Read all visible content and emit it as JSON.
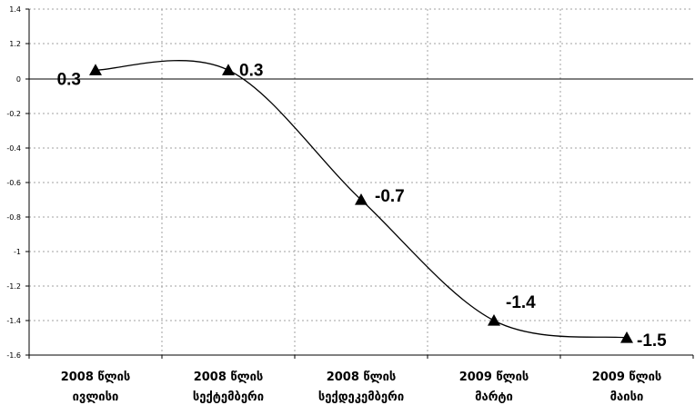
{
  "chart_data": {
    "type": "line",
    "title": "",
    "xlabel": "",
    "ylabel": "",
    "ylim": [
      -1.6,
      1.4
    ],
    "yticks": [
      "1.4",
      "1.2",
      "0",
      "-0.2",
      "-0.4",
      "-0.6",
      "-0.8",
      "-1",
      "-1.2",
      "-1.4",
      "-1.6"
    ],
    "categories": [
      [
        "2008 წლის",
        "ივლისი"
      ],
      [
        "2008 წლის",
        "სექტემბერი"
      ],
      [
        "2008 წლის",
        "სექდეკემბერი"
      ],
      [
        "2009 წლის",
        "მარტი"
      ],
      [
        "2009 წლის",
        "მაისი"
      ]
    ],
    "series": [
      {
        "values": [
          0.3,
          0.3,
          -0.7,
          -1.4,
          -1.5
        ],
        "labels": [
          "0.3",
          "0.3",
          "-0.7",
          "-1.4",
          "-1.5"
        ]
      }
    ],
    "grid": true,
    "legend": "none",
    "colors": {
      "line": "#000000",
      "grid": "#a0a0a0",
      "marker": "#000000"
    }
  }
}
